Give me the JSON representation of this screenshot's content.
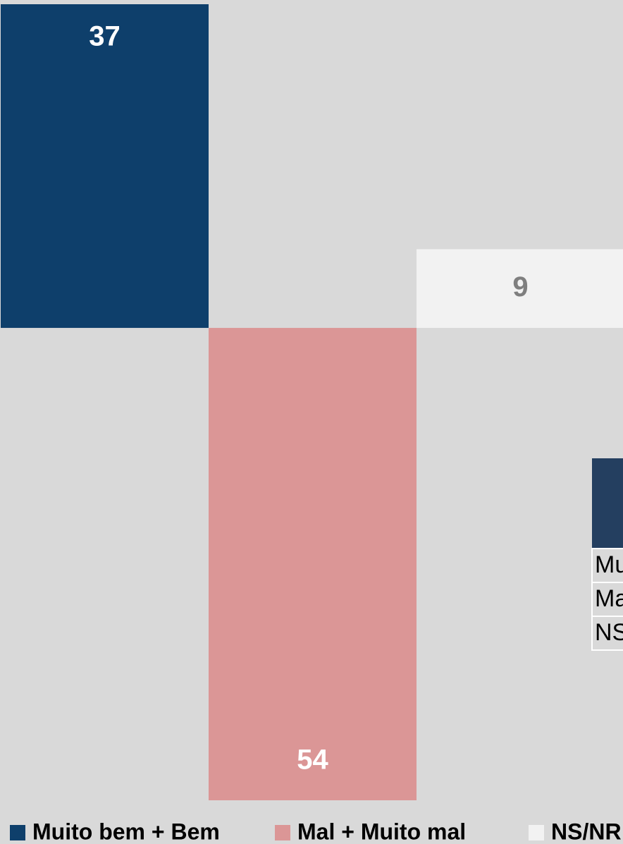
{
  "chart_data": {
    "type": "bar",
    "series": [
      {
        "name": "Muito bem + Bem",
        "color": "#0e3f6b",
        "values": [
          37
        ],
        "value_labels": [
          "37"
        ],
        "label_color": "#ffffff"
      },
      {
        "name": "Mal + Muito mal",
        "color": "#db9696",
        "values": [
          -54
        ],
        "value_labels": [
          "54"
        ],
        "label_color": "#ffffff"
      },
      {
        "name": "NS/NR",
        "color": "#f2f2f2",
        "values": [
          9
        ],
        "value_labels": [
          "9"
        ],
        "label_color": "#7f7f7f"
      }
    ],
    "ylim": [
      -54,
      37
    ],
    "grid": false
  }
}
